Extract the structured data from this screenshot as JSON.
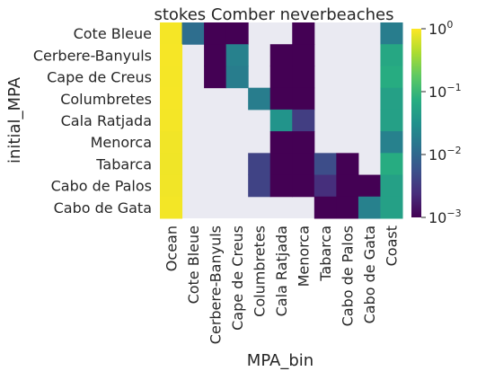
{
  "chart_data": {
    "type": "heatmap",
    "title": "stokes Comber neverbeaches",
    "xlabel": "MPA_bin",
    "ylabel": "initial_MPA",
    "columns": [
      "Ocean",
      "Cote Bleue",
      "Cerbere-Banyuls",
      "Cape de Creus",
      "Columbretes",
      "Cala Ratjada",
      "Menorca",
      "Tabarca",
      "Cabo de Palos",
      "Cabo de Gata",
      "Coast"
    ],
    "rows": [
      "Cote Bleue",
      "Cerbere-Banyuls",
      "Cape de Creus",
      "Columbretes",
      "Cala Ratjada",
      "Menorca",
      "Tabarca",
      "Cabo de Palos",
      "Cabo de Gata"
    ],
    "values": [
      [
        0.92,
        0.012,
        0.001,
        0.001,
        null,
        null,
        0.001,
        null,
        null,
        null,
        0.018
      ],
      [
        0.93,
        null,
        0.001,
        0.02,
        null,
        0.001,
        0.001,
        null,
        null,
        null,
        0.06
      ],
      [
        0.92,
        null,
        0.001,
        0.018,
        null,
        0.001,
        0.001,
        null,
        null,
        null,
        0.07
      ],
      [
        0.93,
        null,
        null,
        null,
        0.018,
        0.001,
        0.001,
        null,
        null,
        null,
        0.05
      ],
      [
        0.91,
        null,
        null,
        null,
        null,
        0.035,
        0.0035,
        null,
        null,
        null,
        0.05
      ],
      [
        0.88,
        null,
        null,
        null,
        null,
        0.001,
        0.001,
        null,
        null,
        null,
        0.02
      ],
      [
        0.87,
        null,
        null,
        null,
        0.004,
        0.001,
        0.001,
        0.005,
        0.001,
        null,
        0.07
      ],
      [
        0.88,
        null,
        null,
        null,
        0.004,
        0.001,
        0.001,
        0.0025,
        0.001,
        0.001,
        0.05
      ],
      [
        0.9,
        null,
        null,
        null,
        null,
        null,
        null,
        0.001,
        0.001,
        0.02,
        0.05
      ]
    ],
    "colorscale": "viridis",
    "color_scale_type": "log",
    "vmin": 0.001,
    "vmax": 1,
    "missing_color": "#eaeaf2",
    "colorbar": {
      "ticks": [
        0.001,
        0.01,
        0.1,
        1
      ],
      "tick_labels": [
        {
          "base": "10",
          "exp": "−3"
        },
        {
          "base": "10",
          "exp": "−2"
        },
        {
          "base": "10",
          "exp": "−1"
        },
        {
          "base": "10",
          "exp": "0"
        }
      ]
    }
  }
}
